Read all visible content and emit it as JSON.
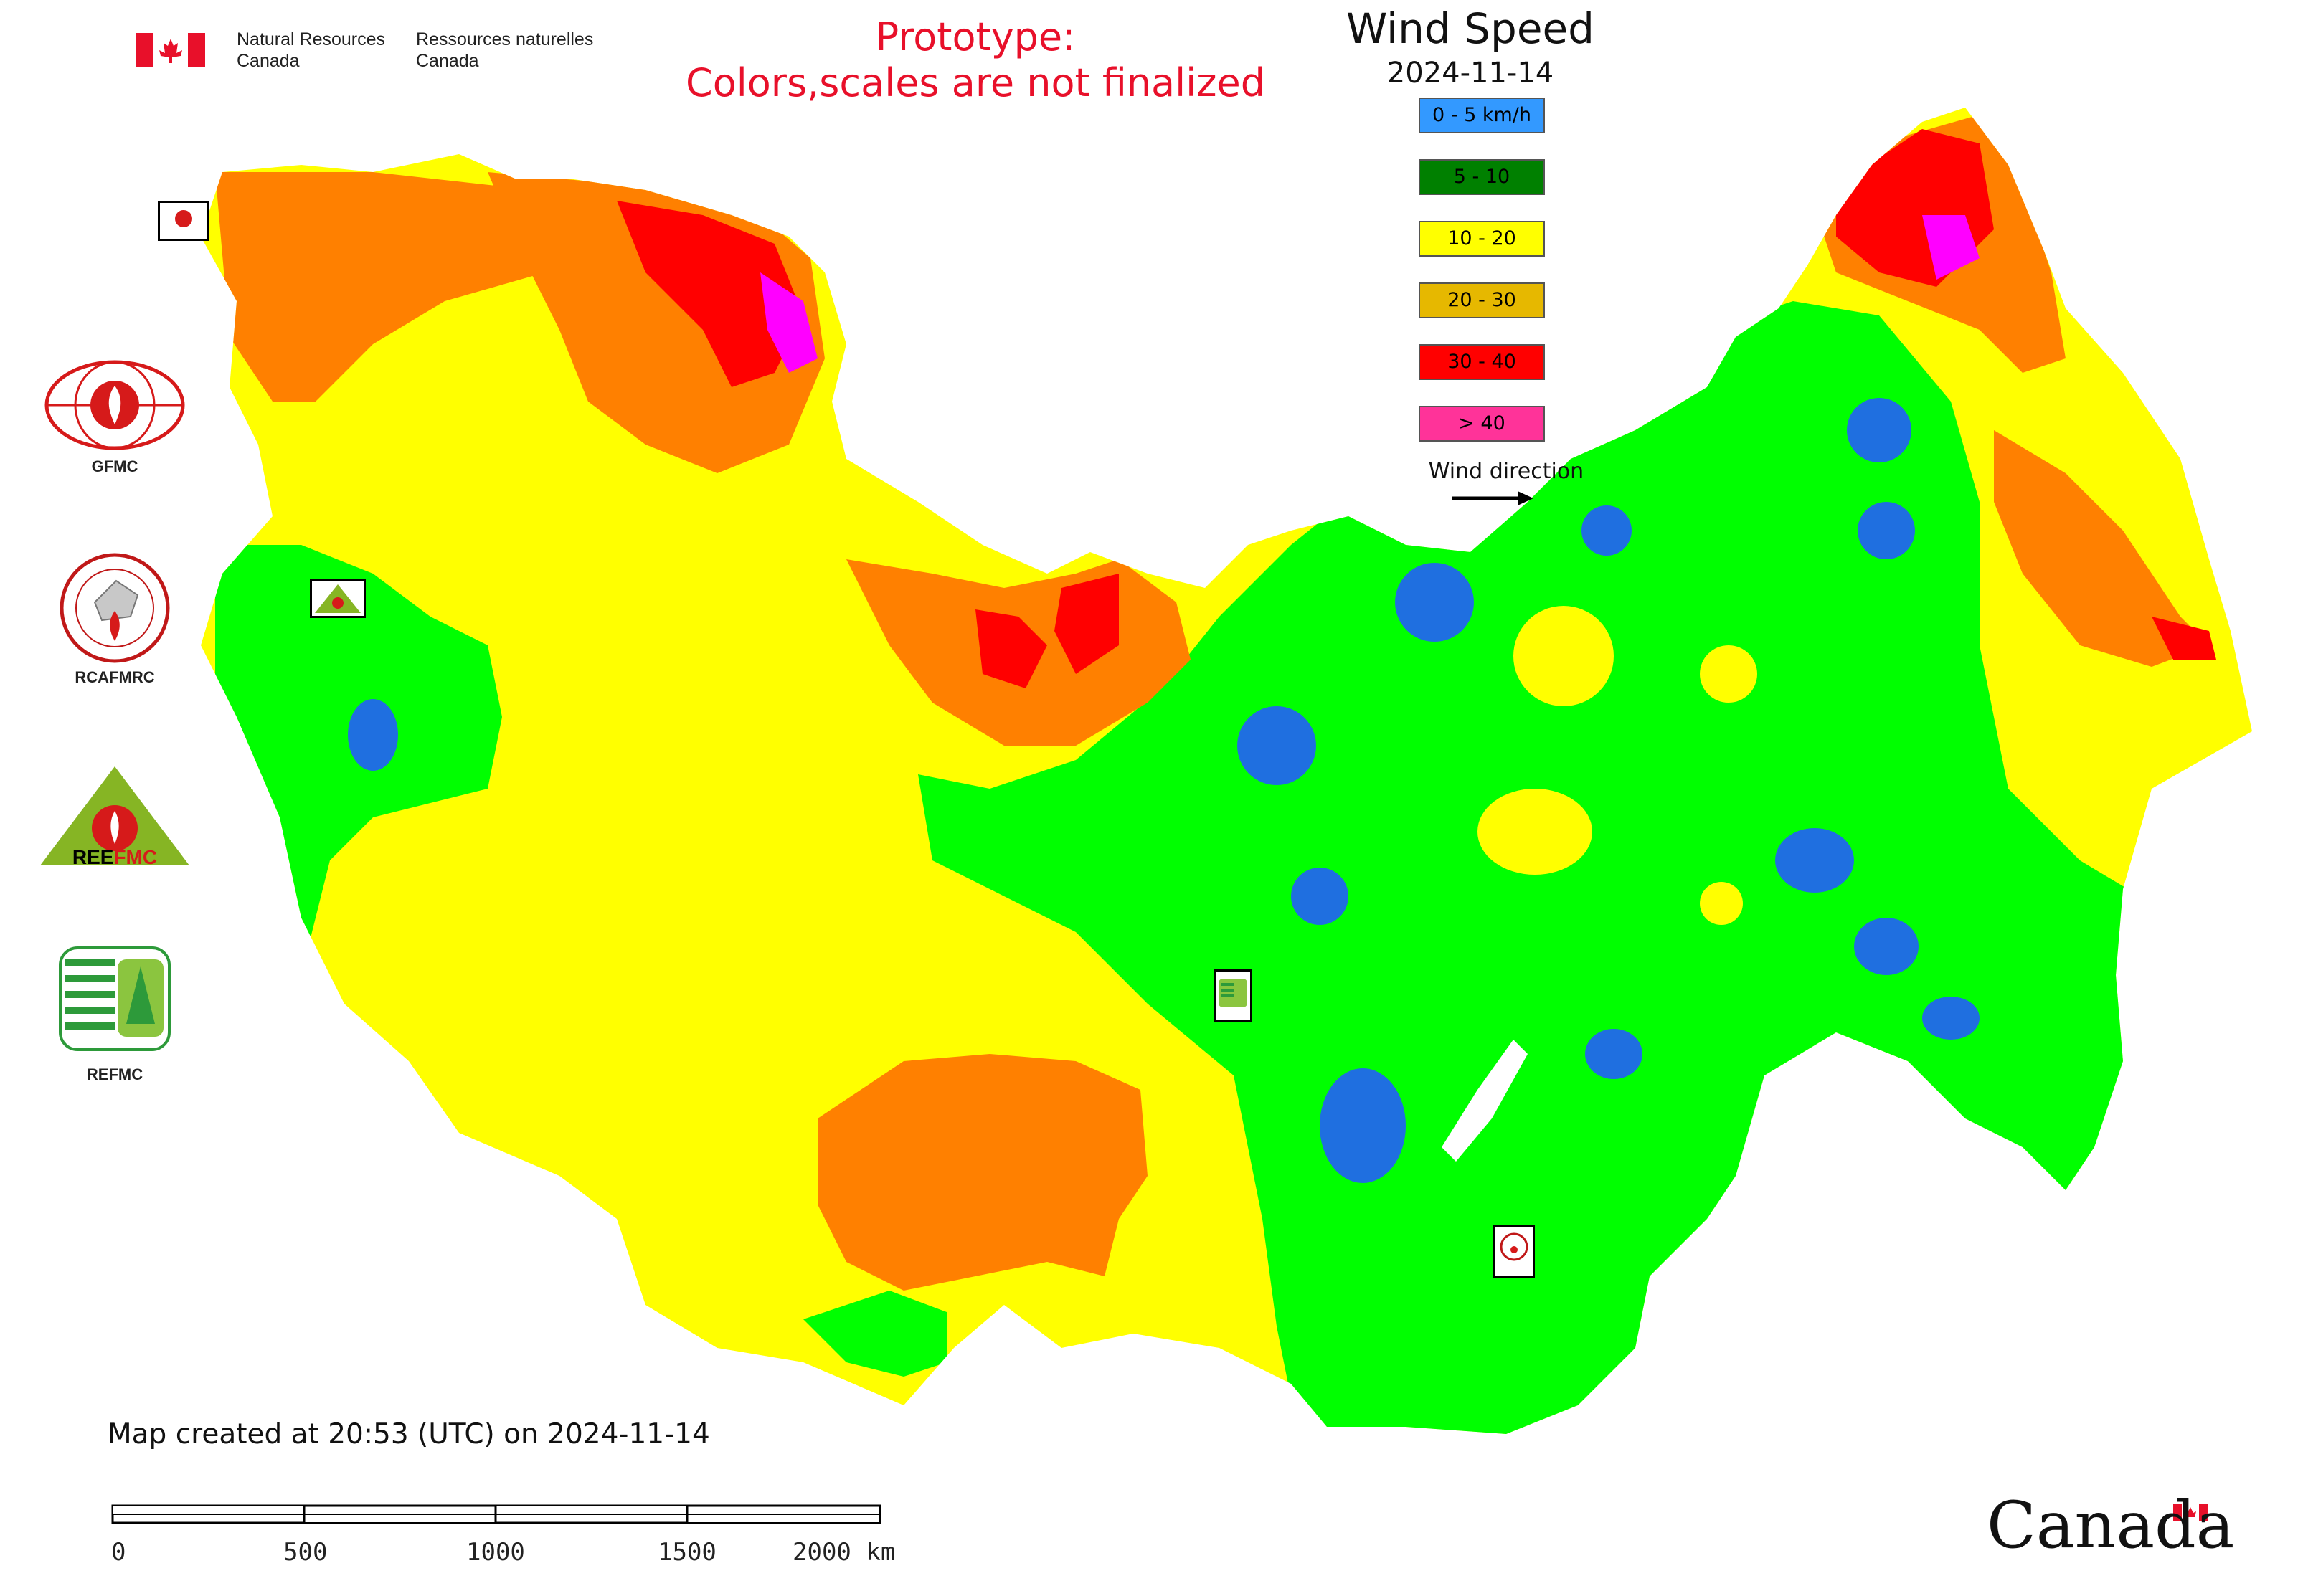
{
  "header": {
    "department_en": "Natural Resources\nCanada",
    "department_fr": "Ressources naturelles\nCanada",
    "prototype_line1": "Prototype:",
    "prototype_line2": "Colors,scales are not finalized"
  },
  "legend": {
    "title": "Wind Speed",
    "date": "2024-11-14",
    "items": [
      {
        "label": "0 - 5 km/h",
        "color": "#3399ff"
      },
      {
        "label": "5 - 10",
        "color": "#008000"
      },
      {
        "label": "10 - 20",
        "color": "#ffff00"
      },
      {
        "label": "20 - 30",
        "color": "#e6b800"
      },
      {
        "label": "30 - 40",
        "color": "#ff0000"
      },
      {
        "label": "> 40",
        "color": "#ff3399"
      }
    ],
    "wind_direction_label": "Wind direction"
  },
  "map_colors": {
    "calm": "#1f6fe0",
    "light": "#00ff00",
    "moderate": "#ffff00",
    "fresh": "#ff8000",
    "strong": "#ff0000",
    "gale": "#ff00ff"
  },
  "logos": [
    {
      "name": "GFMC",
      "label": "GFMC"
    },
    {
      "name": "RCAFMRC",
      "label": "RCAFMRC"
    },
    {
      "name": "REEFMC",
      "label": "REEFMC"
    },
    {
      "name": "REFMC",
      "label": "REFMC"
    }
  ],
  "footer": {
    "created": "Map created at 20:53 (UTC) on 2024-11-14",
    "scale_ticks": [
      "0",
      "500",
      "1000",
      "1500",
      "2000 km"
    ],
    "canada": "Canada"
  }
}
